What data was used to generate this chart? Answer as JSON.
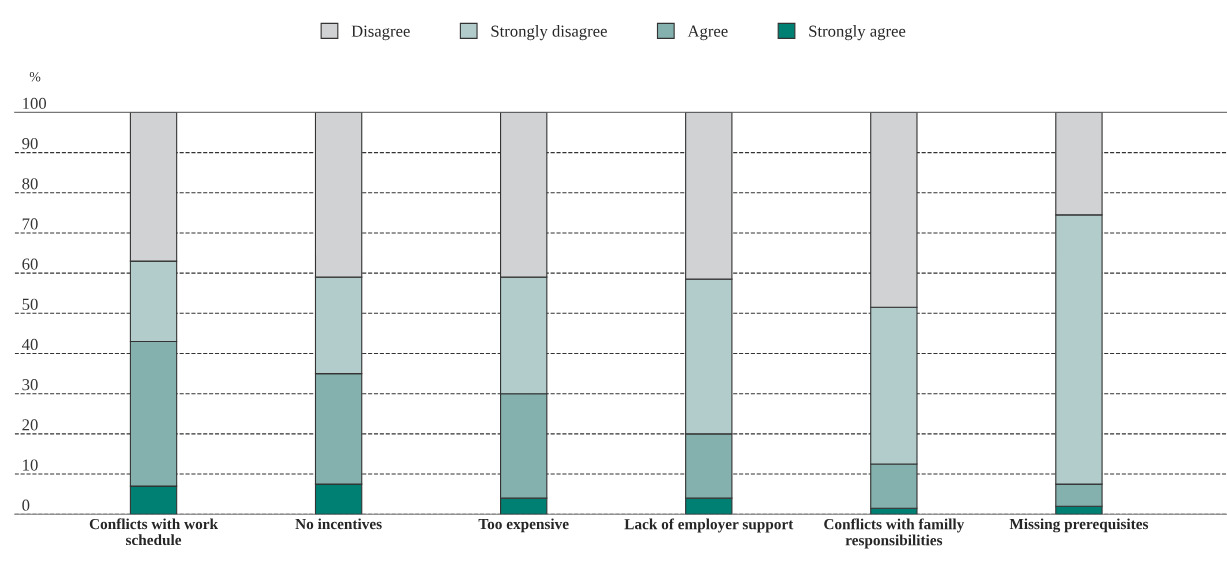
{
  "chart_data": {
    "type": "bar",
    "stacked": true,
    "ylabel": "%",
    "categories": [
      "Conflicts with work schedule",
      "No incentives",
      "Too expensive",
      "Lack of employer support",
      "Conflicts with familly responsibilities",
      "Missing prerequisites"
    ],
    "series": [
      {
        "name": "Strongly agree",
        "color": "#007f73",
        "values": [
          7,
          7.5,
          4,
          4,
          1.5,
          2
        ]
      },
      {
        "name": "Agree",
        "color": "#84b0ad",
        "values": [
          36,
          27.5,
          26,
          16,
          11,
          5.5
        ]
      },
      {
        "name": "Strongly disagree",
        "color": "#b2cccc",
        "values": [
          20,
          24,
          29,
          38.5,
          39,
          67
        ]
      },
      {
        "name": "Disagree",
        "color": "#d1d2d4",
        "values": [
          37,
          41,
          41,
          41.5,
          48.5,
          25.5
        ]
      }
    ],
    "ylim": [
      0,
      100
    ],
    "yticks": [
      0,
      10,
      20,
      30,
      40,
      50,
      60,
      70,
      80,
      90,
      100
    ],
    "grid": "y",
    "legend": "top"
  }
}
